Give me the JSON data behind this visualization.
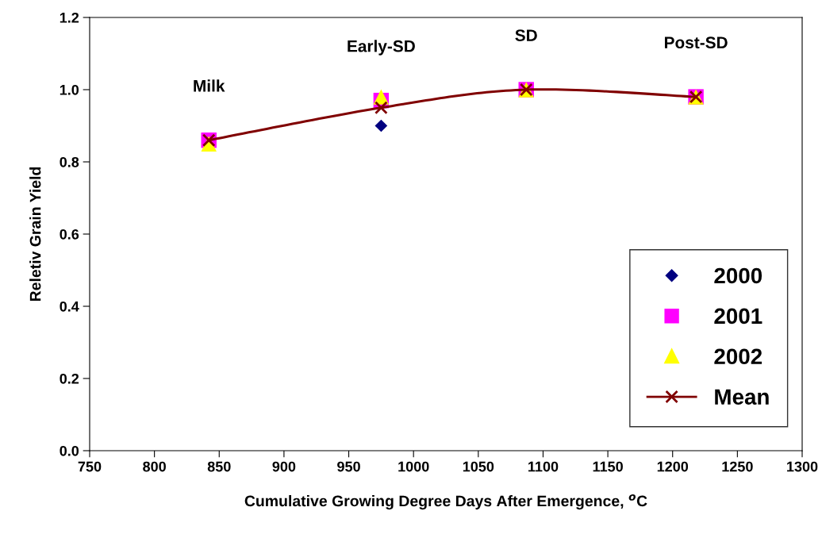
{
  "chart_data": {
    "type": "scatter",
    "xlabel": "Cumulative Growing Degree Days After Emergence, $^{o}$C",
    "ylabel": "Reletiv Grain Yield",
    "x": [
      842,
      975,
      1087,
      1218
    ],
    "series": [
      {
        "name": "2000",
        "color": "#000080",
        "marker": "diamond",
        "values": [
          null,
          0.9,
          null,
          null
        ]
      },
      {
        "name": "2001",
        "color": "#ff00ff",
        "marker": "square",
        "values": [
          0.86,
          0.97,
          1.0,
          0.98
        ]
      },
      {
        "name": "2002",
        "color": "#ffff00",
        "marker": "triangle",
        "values": [
          0.85,
          0.98,
          1.0,
          0.98
        ]
      },
      {
        "name": "Mean",
        "type": "line",
        "color": "#800000",
        "marker": "cross",
        "line_style": "solid",
        "values": [
          0.86,
          0.95,
          1.0,
          0.98
        ]
      }
    ],
    "annotations": [
      {
        "text": "Milk",
        "x": 842,
        "y": 0.86
      },
      {
        "text": "Early-SD",
        "x": 975,
        "y": 0.97
      },
      {
        "text": "SD",
        "x": 1087,
        "y": 1.0
      },
      {
        "text": "Post-SD",
        "x": 1218,
        "y": 0.98
      }
    ],
    "xlim": [
      750,
      1300
    ],
    "xticks": [
      750,
      800,
      850,
      900,
      950,
      1000,
      1050,
      1100,
      1150,
      1200,
      1250,
      1300
    ],
    "ylim": [
      0,
      1.2
    ],
    "yticks": [
      {
        "value": 0,
        "label": "0.0"
      },
      {
        "value": 0.2,
        "label": "0.2"
      },
      {
        "value": 0.4,
        "label": "0.4"
      },
      {
        "value": 0.6,
        "label": "0.6"
      },
      {
        "value": 0.8,
        "label": "0.8"
      },
      {
        "value": 1.0,
        "label": "1.0"
      },
      {
        "value": 1.2,
        "label": "1.2"
      }
    ],
    "grid": false,
    "legend": "bottom right"
  }
}
